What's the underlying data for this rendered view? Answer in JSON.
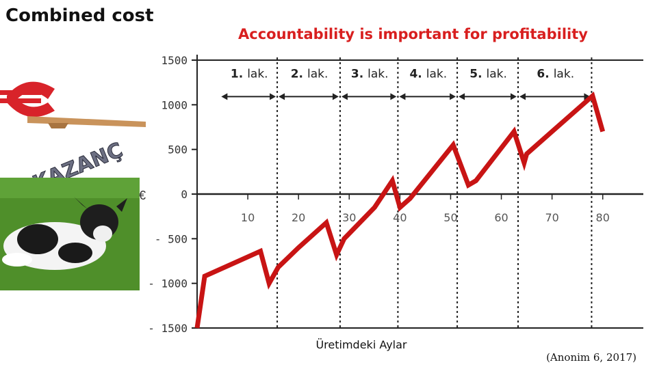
{
  "slide": {
    "title": "Combined cost",
    "citation": "(Anonim 6, 2017)"
  },
  "images": {
    "banner_text": "KAZANÇ",
    "currency_symbol": "€"
  },
  "colors": {
    "title_red": "#d81f1f",
    "line_red": "#c81414",
    "grid_dark": "#222222",
    "scale_red": "#d8232a",
    "wood": "#c9935b",
    "grass": "#4f8f2a"
  },
  "chart_data": {
    "type": "line",
    "title": "Accountability is important for profitability",
    "xlabel": "Üretimdeki Aylar",
    "ylabel": "€",
    "xlim": [
      0,
      88
    ],
    "ylim": [
      -1500,
      1500
    ],
    "x_ticks": [
      10,
      20,
      30,
      40,
      50,
      60,
      70,
      80
    ],
    "y_ticks": [
      1500,
      1000,
      500,
      0,
      -500,
      -1000,
      -1500
    ],
    "y_tick_labels": [
      "1500",
      "1000",
      "500",
      "0",
      "- 500",
      "- 1000",
      "- 1500"
    ],
    "lactation_boundaries": [
      15.8,
      28.2,
      39.6,
      51.3,
      63.3,
      77.8
    ],
    "lactations": [
      {
        "number": "1.",
        "label": "lak.",
        "x_from": 4.5,
        "x_to": 15.8
      },
      {
        "number": "2.",
        "label": "lak.",
        "x_from": 15.8,
        "x_to": 28.2
      },
      {
        "number": "3.",
        "label": "lak.",
        "x_from": 28.2,
        "x_to": 39.6
      },
      {
        "number": "4.",
        "label": "lak.",
        "x_from": 39.6,
        "x_to": 51.3
      },
      {
        "number": "5.",
        "label": "lak.",
        "x_from": 51.3,
        "x_to": 63.3
      },
      {
        "number": "6.",
        "label": "lak.",
        "x_from": 63.3,
        "x_to": 77.8
      }
    ],
    "series": [
      {
        "x": [
          0,
          1.5,
          12.5,
          14.2,
          16,
          20,
          25.5,
          27.5,
          29,
          35,
          38.5,
          40,
          42,
          50.5,
          53.5,
          55,
          62.5,
          64.5,
          65,
          70,
          78,
          80
        ],
        "values": [
          -1500,
          -920,
          -640,
          -1000,
          -820,
          -600,
          -320,
          -680,
          -500,
          -150,
          150,
          -150,
          -50,
          550,
          100,
          150,
          700,
          350,
          450,
          700,
          1100,
          700
        ]
      }
    ]
  }
}
